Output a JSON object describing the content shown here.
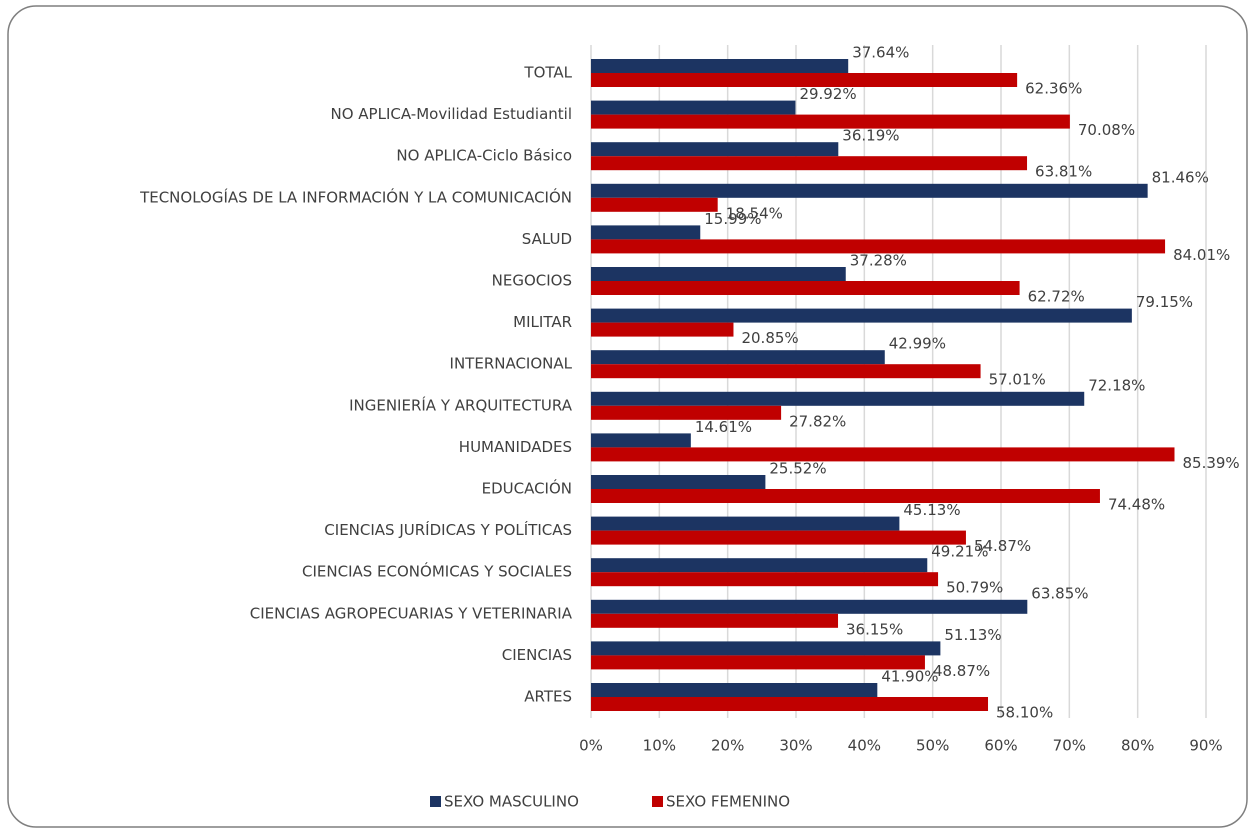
{
  "chart_data": {
    "type": "bar",
    "orientation": "horizontal",
    "categories": [
      "TOTAL",
      "NO APLICA-Movilidad Estudiantil",
      "NO APLICA-Ciclo Básico",
      "TECNOLOGÍAS DE LA INFORMACIÓN Y LA COMUNICACIÓN",
      "SALUD",
      "NEGOCIOS",
      "MILITAR",
      "INTERNACIONAL",
      "INGENIERÍA Y ARQUITECTURA",
      "HUMANIDADES",
      "EDUCACIÓN",
      "CIENCIAS JURÍDICAS Y POLÍTICAS",
      "CIENCIAS ECONÓMICAS Y SOCIALES",
      "CIENCIAS AGROPECUARIAS Y VETERINARIA",
      "CIENCIAS",
      "ARTES"
    ],
    "series": [
      {
        "name": "SEXO MASCULINO",
        "color": "#1c3462",
        "values": [
          37.64,
          29.92,
          36.19,
          81.46,
          15.99,
          37.28,
          79.15,
          42.99,
          72.18,
          14.61,
          25.52,
          45.13,
          49.21,
          63.85,
          51.13,
          41.9
        ],
        "value_labels": [
          "37.64%",
          "29.92%",
          "36.19%",
          "81.46%",
          "15.99%",
          "37.28%",
          "79.15%",
          "42.99%",
          "72.18%",
          "14.61%",
          "25.52%",
          "45.13%",
          "49.21%",
          "63.85%",
          "51.13%",
          "41.90%"
        ]
      },
      {
        "name": "SEXO FEMENINO",
        "color": "#c00000",
        "values": [
          62.36,
          70.08,
          63.81,
          18.54,
          84.01,
          62.72,
          20.85,
          57.01,
          27.82,
          85.39,
          74.48,
          54.87,
          50.79,
          36.15,
          48.87,
          58.1
        ],
        "value_labels": [
          "62.36%",
          "70.08%",
          "63.81%",
          "18.54%",
          "84.01%",
          "62.72%",
          "20.85%",
          "57.01%",
          "27.82%",
          "85.39%",
          "74.48%",
          "54.87%",
          "50.79%",
          "36.15%",
          "48.87%",
          "58.10%"
        ]
      }
    ],
    "xlim": [
      0,
      90
    ],
    "xticks": [
      {
        "value": 0,
        "label": "0%"
      },
      {
        "value": 10,
        "label": "10%"
      },
      {
        "value": 20,
        "label": "20%"
      },
      {
        "value": 30,
        "label": "30%"
      },
      {
        "value": 40,
        "label": "40%"
      },
      {
        "value": 50,
        "label": "50%"
      },
      {
        "value": 60,
        "label": "60%"
      },
      {
        "value": 70,
        "label": "70%"
      },
      {
        "value": 80,
        "label": "80%"
      },
      {
        "value": 90,
        "label": "90%"
      }
    ],
    "grid": true,
    "legend": "bottom"
  }
}
